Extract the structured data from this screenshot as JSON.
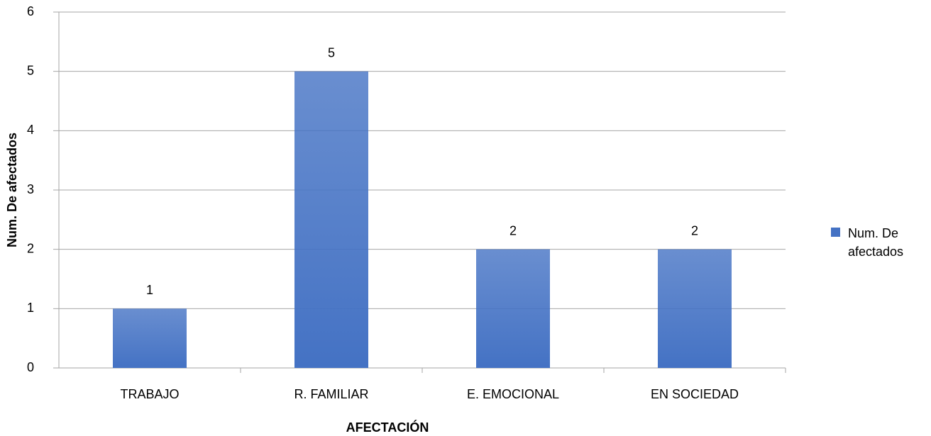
{
  "chart_data": {
    "type": "bar",
    "categories": [
      "TRABAJO",
      "R. FAMILIAR",
      "E. EMOCIONAL",
      "EN SOCIEDAD"
    ],
    "series": [
      {
        "name": "Num. De afectados",
        "color": "#4472c4",
        "values": [
          1,
          5,
          2,
          2
        ]
      }
    ],
    "xlabel": "AFECTACIÓN",
    "ylabel": "Num. De afectados",
    "ylim": [
      0,
      6
    ],
    "yticks": [
      0,
      1,
      2,
      3,
      4,
      5,
      6
    ],
    "grid": true,
    "legend": "right"
  }
}
